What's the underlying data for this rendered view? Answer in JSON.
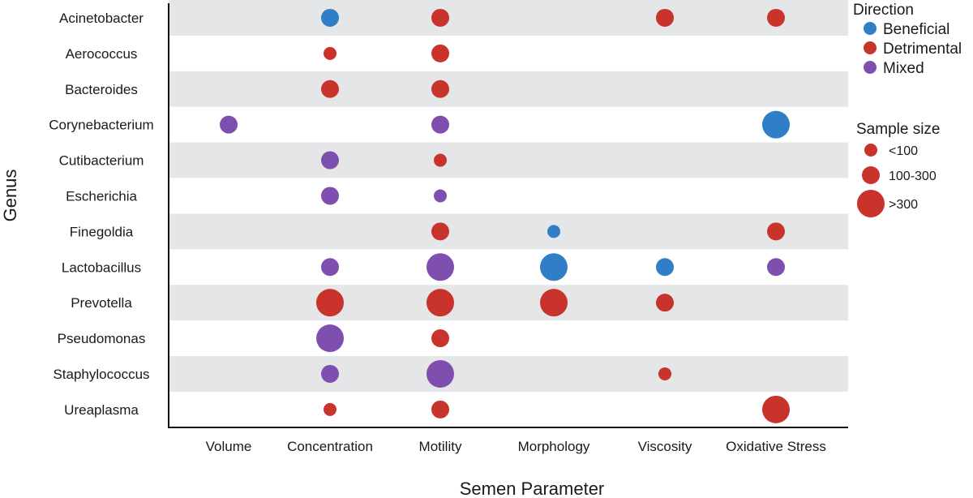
{
  "chart_data": {
    "type": "scatter",
    "xlabel": "Semen Parameter",
    "ylabel": "Genus",
    "x_categories": [
      "Volume",
      "Concentration",
      "Motility",
      "Morphology",
      "Viscosity",
      "Oxidative Stress"
    ],
    "y_categories": [
      "Acinetobacter",
      "Aerococcus",
      "Bacteroides",
      "Corynebacterium",
      "Cutibacterium",
      "Escherichia",
      "Finegoldia",
      "Lactobacillus",
      "Prevotella",
      "Pseudomonas",
      "Staphylococcus",
      "Ureaplasma"
    ],
    "grid": "alternating row bands",
    "legend_placement": "right",
    "colors": {
      "Beneficial": "#2f7ec6",
      "Detrimental": "#c8332c",
      "Mixed": "#7f4fb0",
      "band": "#e5e6e8"
    },
    "legend": {
      "direction_title": "Direction",
      "direction_entries": [
        "Beneficial",
        "Detrimental",
        "Mixed"
      ],
      "size_title": "Sample size",
      "size_entries": [
        "<100",
        "100-300",
        ">300"
      ]
    },
    "points": [
      {
        "genus": "Acinetobacter",
        "parameter": "Concentration",
        "direction": "Beneficial",
        "size": "100-300"
      },
      {
        "genus": "Acinetobacter",
        "parameter": "Motility",
        "direction": "Detrimental",
        "size": "100-300"
      },
      {
        "genus": "Acinetobacter",
        "parameter": "Viscosity",
        "direction": "Detrimental",
        "size": "100-300"
      },
      {
        "genus": "Acinetobacter",
        "parameter": "Oxidative Stress",
        "direction": "Detrimental",
        "size": "100-300"
      },
      {
        "genus": "Aerococcus",
        "parameter": "Concentration",
        "direction": "Detrimental",
        "size": "<100"
      },
      {
        "genus": "Aerococcus",
        "parameter": "Motility",
        "direction": "Detrimental",
        "size": "100-300"
      },
      {
        "genus": "Bacteroides",
        "parameter": "Concentration",
        "direction": "Detrimental",
        "size": "100-300"
      },
      {
        "genus": "Bacteroides",
        "parameter": "Motility",
        "direction": "Detrimental",
        "size": "100-300"
      },
      {
        "genus": "Corynebacterium",
        "parameter": "Volume",
        "direction": "Mixed",
        "size": "100-300"
      },
      {
        "genus": "Corynebacterium",
        "parameter": "Motility",
        "direction": "Mixed",
        "size": "100-300"
      },
      {
        "genus": "Corynebacterium",
        "parameter": "Oxidative Stress",
        "direction": "Beneficial",
        "size": ">300"
      },
      {
        "genus": "Cutibacterium",
        "parameter": "Concentration",
        "direction": "Mixed",
        "size": "100-300"
      },
      {
        "genus": "Cutibacterium",
        "parameter": "Motility",
        "direction": "Detrimental",
        "size": "<100"
      },
      {
        "genus": "Escherichia",
        "parameter": "Concentration",
        "direction": "Mixed",
        "size": "100-300"
      },
      {
        "genus": "Escherichia",
        "parameter": "Motility",
        "direction": "Mixed",
        "size": "<100"
      },
      {
        "genus": "Finegoldia",
        "parameter": "Motility",
        "direction": "Detrimental",
        "size": "100-300"
      },
      {
        "genus": "Finegoldia",
        "parameter": "Morphology",
        "direction": "Beneficial",
        "size": "<100"
      },
      {
        "genus": "Finegoldia",
        "parameter": "Oxidative Stress",
        "direction": "Detrimental",
        "size": "100-300"
      },
      {
        "genus": "Lactobacillus",
        "parameter": "Concentration",
        "direction": "Mixed",
        "size": "100-300"
      },
      {
        "genus": "Lactobacillus",
        "parameter": "Motility",
        "direction": "Mixed",
        "size": ">300"
      },
      {
        "genus": "Lactobacillus",
        "parameter": "Morphology",
        "direction": "Beneficial",
        "size": ">300"
      },
      {
        "genus": "Lactobacillus",
        "parameter": "Viscosity",
        "direction": "Beneficial",
        "size": "100-300"
      },
      {
        "genus": "Lactobacillus",
        "parameter": "Oxidative Stress",
        "direction": "Mixed",
        "size": "100-300"
      },
      {
        "genus": "Prevotella",
        "parameter": "Concentration",
        "direction": "Detrimental",
        "size": ">300"
      },
      {
        "genus": "Prevotella",
        "parameter": "Motility",
        "direction": "Detrimental",
        "size": ">300"
      },
      {
        "genus": "Prevotella",
        "parameter": "Morphology",
        "direction": "Detrimental",
        "size": ">300"
      },
      {
        "genus": "Prevotella",
        "parameter": "Viscosity",
        "direction": "Detrimental",
        "size": "100-300"
      },
      {
        "genus": "Pseudomonas",
        "parameter": "Concentration",
        "direction": "Mixed",
        "size": ">300"
      },
      {
        "genus": "Pseudomonas",
        "parameter": "Motility",
        "direction": "Detrimental",
        "size": "100-300"
      },
      {
        "genus": "Staphylococcus",
        "parameter": "Concentration",
        "direction": "Mixed",
        "size": "100-300"
      },
      {
        "genus": "Staphylococcus",
        "parameter": "Motility",
        "direction": "Mixed",
        "size": ">300"
      },
      {
        "genus": "Staphylococcus",
        "parameter": "Viscosity",
        "direction": "Detrimental",
        "size": "<100"
      },
      {
        "genus": "Ureaplasma",
        "parameter": "Concentration",
        "direction": "Detrimental",
        "size": "<100"
      },
      {
        "genus": "Ureaplasma",
        "parameter": "Motility",
        "direction": "Detrimental",
        "size": "100-300"
      },
      {
        "genus": "Ureaplasma",
        "parameter": "Oxidative Stress",
        "direction": "Detrimental",
        "size": ">300"
      }
    ]
  }
}
